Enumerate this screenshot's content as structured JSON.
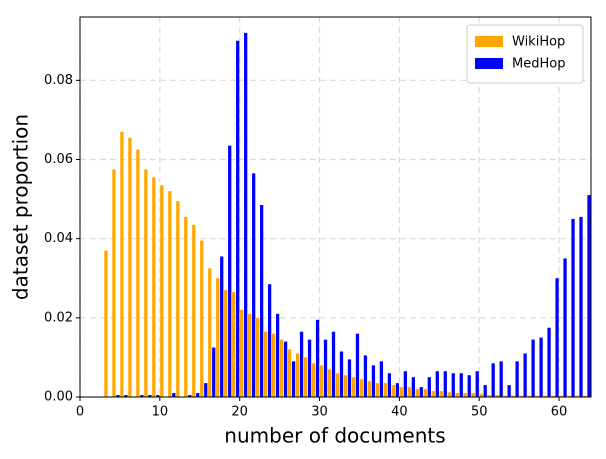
{
  "chart_data": {
    "type": "bar",
    "xlabel": "number of documents",
    "ylabel": "dataset proportion",
    "x": [
      3,
      4,
      5,
      6,
      7,
      8,
      9,
      10,
      11,
      12,
      13,
      14,
      15,
      16,
      17,
      18,
      19,
      20,
      21,
      22,
      23,
      24,
      25,
      26,
      27,
      28,
      29,
      30,
      31,
      32,
      33,
      34,
      35,
      36,
      37,
      38,
      39,
      40,
      41,
      42,
      43,
      44,
      45,
      46,
      47,
      48,
      49,
      50,
      51,
      52,
      53,
      54,
      55,
      56,
      57,
      58,
      59,
      60,
      61,
      62,
      63
    ],
    "series": [
      {
        "name": "WikiHop",
        "color": "#ffa500",
        "values": [
          0.037,
          0.0575,
          0.067,
          0.0655,
          0.0625,
          0.0575,
          0.0555,
          0.0535,
          0.052,
          0.0495,
          0.0455,
          0.0435,
          0.0395,
          0.0325,
          0.03,
          0.027,
          0.0265,
          0.022,
          0.021,
          0.02,
          0.0165,
          0.016,
          0.0145,
          0.012,
          0.011,
          0.01,
          0.0085,
          0.008,
          0.007,
          0.006,
          0.0055,
          0.005,
          0.0045,
          0.004,
          0.0035,
          0.0035,
          0.003,
          0.0025,
          0.0025,
          0.002,
          0.002,
          0.0015,
          0.0015,
          0.0012,
          0.001,
          0.001,
          0.001,
          0.0008,
          0.0005,
          0.0005,
          0.0003,
          0.0003,
          0.0003,
          0.0003,
          0.0003,
          0.0003,
          0.0003,
          0.0003,
          0.0003,
          0.0003,
          0.0003
        ]
      },
      {
        "name": "MedHop",
        "color": "#0000ff",
        "values": [
          0,
          0.0005,
          0.0005,
          0,
          0.0005,
          0.0005,
          0.0005,
          0,
          0.001,
          0,
          0.0005,
          0.001,
          0.0035,
          0.0125,
          0.0355,
          0.0635,
          0.09,
          0.092,
          0.0565,
          0.0485,
          0.0285,
          0.021,
          0.014,
          0.009,
          0.0165,
          0.0145,
          0.0195,
          0.0145,
          0.0165,
          0.0115,
          0.0095,
          0.016,
          0.0105,
          0.008,
          0.009,
          0.006,
          0.0035,
          0.0065,
          0.005,
          0.0025,
          0.005,
          0.0065,
          0.0065,
          0.006,
          0.006,
          0.0055,
          0.0065,
          0.003,
          0.0085,
          0.009,
          0.003,
          0.009,
          0.011,
          0.0145,
          0.015,
          0.0175,
          0.03,
          0.035,
          0.045,
          0.0455,
          0.051
        ]
      }
    ],
    "xlim": [
      0,
      64
    ],
    "ylim": [
      0,
      0.096
    ],
    "xticks": [
      0,
      10,
      20,
      30,
      40,
      50,
      60
    ],
    "yticks": [
      {
        "value": 0,
        "label": "0.00"
      },
      {
        "value": 0.02,
        "label": "0.02"
      },
      {
        "value": 0.04,
        "label": "0.04"
      },
      {
        "value": 0.06,
        "label": "0.06"
      },
      {
        "value": 0.08,
        "label": "0.08"
      }
    ],
    "grid": true,
    "legend": "upper right"
  }
}
